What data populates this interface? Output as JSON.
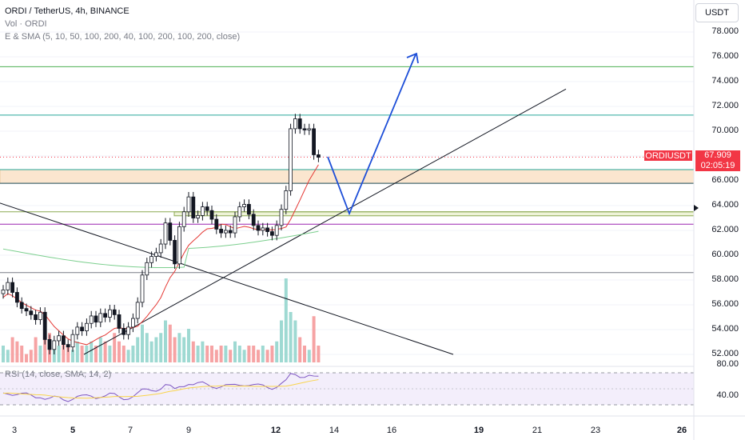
{
  "legend": {
    "title": "ORDI / TetherUS, 4h, BINANCE",
    "vol": "Vol · ORDI",
    "ma": "E & SMA (5, 10, 50, 100, 200, 40, 100, 200, 100, 200, close)"
  },
  "currency_button": "USDT",
  "price_axis": [
    "78.000",
    "76.000",
    "74.000",
    "72.000",
    "70.000",
    "68.000",
    "66.000",
    "64.000",
    "62.000",
    "60.000",
    "58.000",
    "56.000",
    "54.000",
    "52.000"
  ],
  "symbol_badge": "ORDIUSDT",
  "last_price": "67.909",
  "countdown": "02:05:19",
  "rsi": {
    "legend": "RSI (14, close, SMA, 14, 2)",
    "levels": [
      "80.00",
      "40.00"
    ]
  },
  "time_axis": [
    "3",
    "5",
    "7",
    "9",
    "12",
    "14",
    "16",
    "19",
    "21",
    "23",
    "26"
  ],
  "colors": {
    "up": "#ffffff",
    "down": "#131722",
    "vol_up": "#26a69a",
    "vol_down": "#ef5350",
    "accent_red": "#f23645",
    "arrow": "#1e4fd8"
  },
  "chart_data": {
    "type": "candlestick",
    "symbol": "ORDI / TetherUS",
    "interval": "4h",
    "exchange": "BINANCE",
    "ylim": [
      51.5,
      79
    ],
    "horizontal_levels": [
      75.2,
      71.3,
      66.9,
      65.8,
      63.5,
      62.5,
      58.6
    ],
    "zones": [
      {
        "from": 65.8,
        "to": 66.9
      },
      {
        "from": 63.2,
        "to": 63.5
      }
    ],
    "closes": [
      57.2,
      57.8,
      57.0,
      56.2,
      55.7,
      55.5,
      55.2,
      54.8,
      55.4,
      53.2,
      52.4,
      53.1,
      53.5,
      52.8,
      52.6,
      53.6,
      54.2,
      53.9,
      54.5,
      55.1,
      54.6,
      55.3,
      55.0,
      55.6,
      55.2,
      54.1,
      53.6,
      54.2,
      54.9,
      56.2,
      58.4,
      59.4,
      59.9,
      60.2,
      60.9,
      62.6,
      61.2,
      59.3,
      62.3,
      63.5,
      64.7,
      63.0,
      63.2,
      63.9,
      63.6,
      62.9,
      62.1,
      61.8,
      62.0,
      61.8,
      63.1,
      63.9,
      64.1,
      63.3,
      62.4,
      62.0,
      62.2,
      61.9,
      61.6,
      62.4,
      63.7,
      65.2,
      70.2,
      71.0,
      70.2,
      70.1,
      70.2,
      68.1,
      67.9
    ],
    "volume": [
      0.2,
      0.15,
      0.3,
      0.25,
      0.2,
      0.1,
      0.15,
      0.3,
      0.2,
      0.5,
      0.35,
      0.25,
      0.2,
      0.3,
      0.2,
      0.15,
      0.25,
      0.2,
      0.2,
      0.25,
      0.2,
      0.3,
      0.25,
      0.2,
      0.35,
      0.25,
      0.2,
      0.15,
      0.2,
      0.3,
      0.45,
      0.35,
      0.25,
      0.3,
      0.35,
      0.5,
      0.45,
      0.3,
      0.35,
      0.3,
      0.4,
      0.25,
      0.2,
      0.25,
      0.2,
      0.2,
      0.15,
      0.2,
      0.2,
      0.15,
      0.25,
      0.2,
      0.15,
      0.2,
      0.2,
      0.15,
      0.2,
      0.15,
      0.2,
      0.25,
      0.5,
      1.0,
      0.6,
      0.5,
      0.3,
      0.2,
      0.15,
      0.55,
      0.2
    ]
  }
}
